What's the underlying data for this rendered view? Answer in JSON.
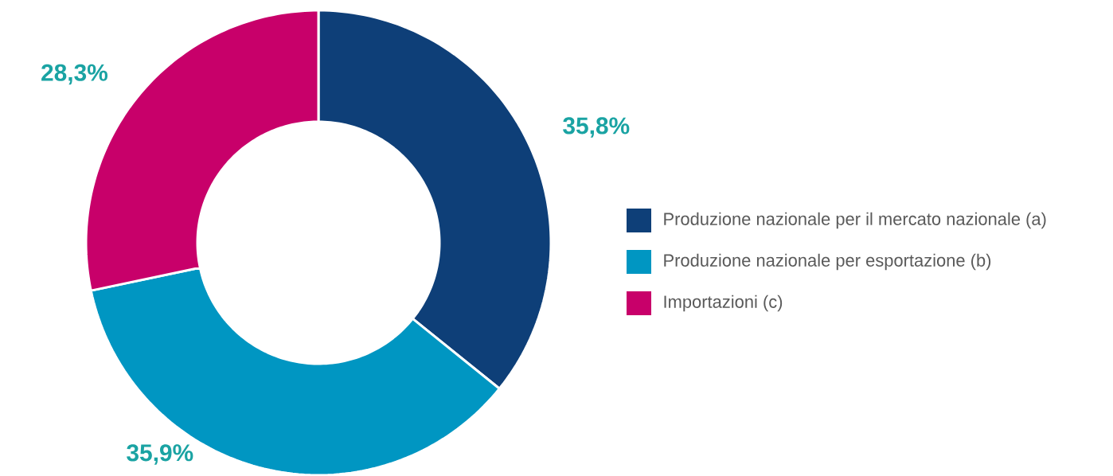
{
  "chart_data": {
    "type": "donut",
    "categories": [
      "Produzione nazionale per il mercato nazionale (a)",
      "Produzione nazionale per esportazione (b)",
      "Importazioni (c)"
    ],
    "values": [
      35.8,
      35.9,
      28.3
    ],
    "colors": [
      "#0e3f78",
      "#0096c2",
      "#c8006a"
    ],
    "value_labels": [
      "35,8%",
      "35,9%",
      "28,3%"
    ],
    "legend": "right"
  }
}
